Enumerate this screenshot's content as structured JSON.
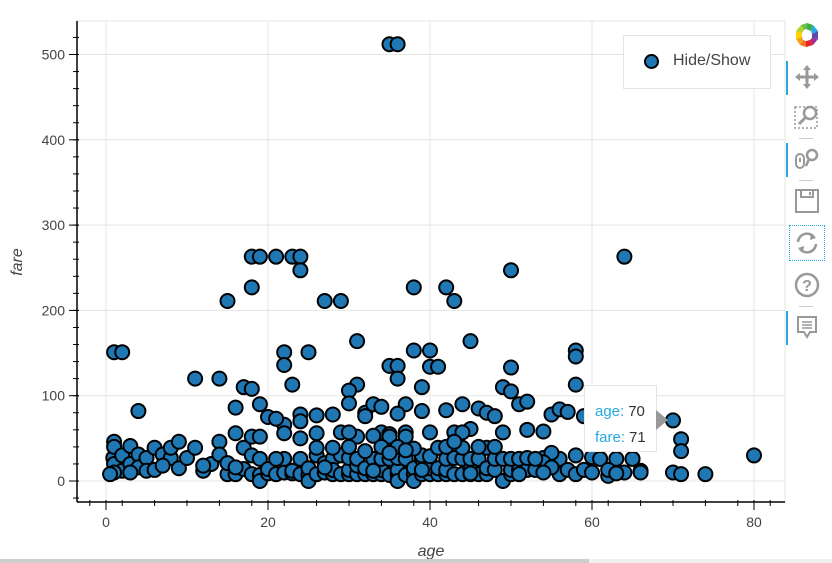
{
  "chart_data": {
    "type": "scatter",
    "title": "",
    "xlabel": "age",
    "ylabel": "fare",
    "xlim": [
      -3.5,
      84.5
    ],
    "ylim": [
      -26,
      537
    ],
    "xticks": [
      0,
      20,
      40,
      60,
      80
    ],
    "yticks": [
      0,
      100,
      200,
      300,
      400,
      500
    ],
    "grid": true,
    "legend": {
      "position": "top-right",
      "entries": [
        "Hide/Show"
      ]
    },
    "marker": {
      "fill": "#1f77b4",
      "stroke": "#000000",
      "radius": 7
    },
    "series": [
      {
        "name": "Hide/Show",
        "points": [
          [
            35,
            512
          ],
          [
            36,
            512
          ],
          [
            18,
            263
          ],
          [
            19,
            263
          ],
          [
            21,
            263
          ],
          [
            23,
            263
          ],
          [
            24,
            263
          ],
          [
            24,
            247
          ],
          [
            18,
            227
          ],
          [
            15,
            211
          ],
          [
            27,
            211
          ],
          [
            29,
            211
          ],
          [
            38,
            227
          ],
          [
            42,
            227
          ],
          [
            43,
            211
          ],
          [
            50,
            247
          ],
          [
            64,
            263
          ],
          [
            1,
            151
          ],
          [
            2,
            151
          ],
          [
            4,
            82
          ],
          [
            11,
            120
          ],
          [
            14,
            120
          ],
          [
            17,
            110
          ],
          [
            18,
            108
          ],
          [
            22,
            151
          ],
          [
            22,
            136
          ],
          [
            23,
            113
          ],
          [
            25,
            151
          ],
          [
            31,
            164
          ],
          [
            31,
            113
          ],
          [
            35,
            135
          ],
          [
            36,
            135
          ],
          [
            36,
            120
          ],
          [
            38,
            153
          ],
          [
            39,
            110
          ],
          [
            40,
            153
          ],
          [
            40,
            134
          ],
          [
            41,
            134
          ],
          [
            45,
            164
          ],
          [
            50,
            133
          ],
          [
            58,
            153
          ],
          [
            58,
            146
          ],
          [
            58,
            113
          ],
          [
            49,
            110
          ],
          [
            30,
            106
          ],
          [
            30,
            91
          ],
          [
            32,
            80
          ],
          [
            33,
            90
          ],
          [
            34,
            87
          ],
          [
            28,
            78
          ],
          [
            44,
            90
          ],
          [
            46,
            85
          ],
          [
            51,
            90
          ],
          [
            52,
            93
          ],
          [
            55,
            78
          ],
          [
            56,
            84
          ],
          [
            47,
            80
          ],
          [
            50,
            105
          ],
          [
            48,
            76
          ],
          [
            42,
            83
          ],
          [
            37,
            90
          ],
          [
            36,
            79
          ],
          [
            39,
            82
          ],
          [
            34,
            57
          ],
          [
            19,
            90
          ],
          [
            16,
            86
          ],
          [
            20,
            75
          ],
          [
            22,
            66
          ],
          [
            24,
            78
          ],
          [
            26,
            77
          ],
          [
            29,
            57
          ],
          [
            31,
            52
          ],
          [
            33,
            53
          ],
          [
            35,
            55
          ],
          [
            37,
            57
          ],
          [
            40,
            57
          ],
          [
            43,
            57
          ],
          [
            45,
            61
          ],
          [
            49,
            57
          ],
          [
            52,
            60
          ],
          [
            54,
            58
          ],
          [
            57,
            81
          ],
          [
            59,
            76
          ],
          [
            61,
            65
          ],
          [
            63,
            55
          ],
          [
            65,
            52
          ],
          [
            70,
            71
          ],
          [
            71,
            49
          ],
          [
            71,
            35
          ],
          [
            74,
            8
          ],
          [
            80,
            30
          ],
          [
            70,
            10
          ],
          [
            71,
            8
          ],
          [
            64,
            10
          ],
          [
            62,
            6
          ],
          [
            61,
            26
          ],
          [
            63,
            26
          ],
          [
            65,
            26
          ],
          [
            66,
            12
          ],
          [
            60,
            28
          ],
          [
            58,
            30
          ],
          [
            56,
            26
          ],
          [
            54,
            27
          ],
          [
            55,
            33
          ],
          [
            54,
            22
          ],
          [
            0.9,
            27
          ],
          [
            1,
            46
          ],
          [
            1,
            40
          ],
          [
            1,
            20
          ],
          [
            2,
            30
          ],
          [
            2,
            12
          ],
          [
            3,
            41
          ],
          [
            3,
            20
          ],
          [
            4,
            31
          ],
          [
            4,
            16
          ],
          [
            5,
            27
          ],
          [
            5,
            12
          ],
          [
            6,
            39
          ],
          [
            6,
            13
          ],
          [
            7,
            31
          ],
          [
            8,
            27
          ],
          [
            8,
            39
          ],
          [
            9,
            46
          ],
          [
            9,
            15
          ],
          [
            10,
            27
          ],
          [
            11,
            39
          ],
          [
            12,
            12
          ],
          [
            13,
            20
          ],
          [
            14,
            46
          ],
          [
            14,
            31
          ],
          [
            15,
            8
          ],
          [
            15,
            21
          ],
          [
            16,
            56
          ],
          [
            16,
            8
          ],
          [
            17,
            39
          ],
          [
            17,
            14
          ],
          [
            18,
            30
          ],
          [
            18,
            8
          ],
          [
            18,
            52
          ],
          [
            19,
            7
          ],
          [
            19,
            26
          ],
          [
            19,
            0
          ],
          [
            20,
            9
          ],
          [
            20,
            14
          ],
          [
            21,
            73
          ],
          [
            21,
            8
          ],
          [
            22,
            10
          ],
          [
            22,
            26
          ],
          [
            22,
            56
          ],
          [
            23,
            9
          ],
          [
            23,
            12
          ],
          [
            24,
            26
          ],
          [
            24,
            8
          ],
          [
            24,
            70
          ],
          [
            25,
            7
          ],
          [
            25,
            15
          ],
          [
            25,
            0
          ],
          [
            26,
            8
          ],
          [
            26,
            30
          ],
          [
            26,
            56
          ],
          [
            27,
            10
          ],
          [
            27,
            21
          ],
          [
            28,
            8
          ],
          [
            28,
            26
          ],
          [
            28,
            13
          ],
          [
            29,
            8
          ],
          [
            29,
            30
          ],
          [
            30,
            8
          ],
          [
            30,
            13
          ],
          [
            30,
            27
          ],
          [
            30,
            57
          ],
          [
            31,
            8
          ],
          [
            31,
            18
          ],
          [
            31,
            26
          ],
          [
            32,
            8
          ],
          [
            32,
            15
          ],
          [
            32,
            76
          ],
          [
            33,
            8
          ],
          [
            33,
            26
          ],
          [
            34,
            8
          ],
          [
            34,
            13
          ],
          [
            34,
            26
          ],
          [
            35,
            7
          ],
          [
            35,
            26
          ],
          [
            35,
            52
          ],
          [
            36,
            8
          ],
          [
            36,
            13
          ],
          [
            36,
            27
          ],
          [
            36,
            0
          ],
          [
            37,
            7
          ],
          [
            37,
            26
          ],
          [
            37,
            52
          ],
          [
            38,
            8
          ],
          [
            38,
            15
          ],
          [
            38,
            0
          ],
          [
            39,
            8
          ],
          [
            39,
            26
          ],
          [
            39,
            30
          ],
          [
            40,
            8
          ],
          [
            40,
            15
          ],
          [
            40,
            29
          ],
          [
            41,
            8
          ],
          [
            41,
            15
          ],
          [
            41,
            39
          ],
          [
            42,
            8
          ],
          [
            42,
            13
          ],
          [
            42,
            26
          ],
          [
            43,
            8
          ],
          [
            43,
            27
          ],
          [
            44,
            8
          ],
          [
            44,
            26
          ],
          [
            44,
            57
          ],
          [
            45,
            8
          ],
          [
            45,
            14
          ],
          [
            45,
            26
          ],
          [
            46,
            26
          ],
          [
            46,
            8
          ],
          [
            47,
            8
          ],
          [
            47,
            15
          ],
          [
            47,
            39
          ],
          [
            48,
            13
          ],
          [
            48,
            26
          ],
          [
            48,
            40
          ],
          [
            49,
            0
          ],
          [
            49,
            26
          ],
          [
            50,
            8
          ],
          [
            50,
            13
          ],
          [
            50,
            26
          ],
          [
            51,
            13
          ],
          [
            51,
            26
          ],
          [
            52,
            13
          ],
          [
            52,
            27
          ],
          [
            53,
            13
          ],
          [
            53,
            26
          ],
          [
            56,
            8
          ],
          [
            57,
            13
          ],
          [
            58,
            8
          ],
          [
            59,
            13
          ],
          [
            60,
            10
          ],
          [
            61,
            26
          ],
          [
            62,
            13
          ],
          [
            63,
            9
          ],
          [
            66,
            10
          ],
          [
            65,
            26
          ],
          [
            55,
            16
          ],
          [
            54,
            10
          ],
          [
            51,
            8
          ],
          [
            45,
            9
          ],
          [
            39,
            13
          ],
          [
            33,
            12
          ],
          [
            27,
            16
          ],
          [
            21,
            26
          ],
          [
            16,
            16
          ],
          [
            12,
            18
          ],
          [
            7,
            18
          ],
          [
            3,
            10
          ],
          [
            1,
            10
          ],
          [
            0.5,
            8
          ],
          [
            44,
            39
          ],
          [
            46,
            40
          ],
          [
            28,
            39
          ],
          [
            32,
            35
          ],
          [
            34,
            40
          ],
          [
            42,
            40
          ],
          [
            43,
            46
          ],
          [
            36,
            40
          ],
          [
            38,
            38
          ],
          [
            19,
            52
          ],
          [
            24,
            50
          ],
          [
            26,
            39
          ],
          [
            30,
            40
          ],
          [
            35,
            33
          ],
          [
            37,
            36
          ]
        ]
      }
    ],
    "tooltip": {
      "age": 70,
      "fare": 71
    }
  },
  "legend": {
    "label": "Hide/Show"
  },
  "tooltip": {
    "age_key": "age:",
    "age_val": "70",
    "fare_key": "fare:",
    "fare_val": "71"
  },
  "toolbar": {
    "tools": [
      {
        "name": "bokeh-logo",
        "active": false
      },
      {
        "name": "pan-tool",
        "active": true
      },
      {
        "name": "box-zoom-tool",
        "active": false
      },
      {
        "name": "wheel-zoom-tool",
        "active": true
      },
      {
        "name": "save-tool",
        "active": false
      },
      {
        "name": "reset-tool",
        "active": false
      },
      {
        "name": "help-tool",
        "active": false
      },
      {
        "name": "hover-tool",
        "active": true
      }
    ]
  }
}
